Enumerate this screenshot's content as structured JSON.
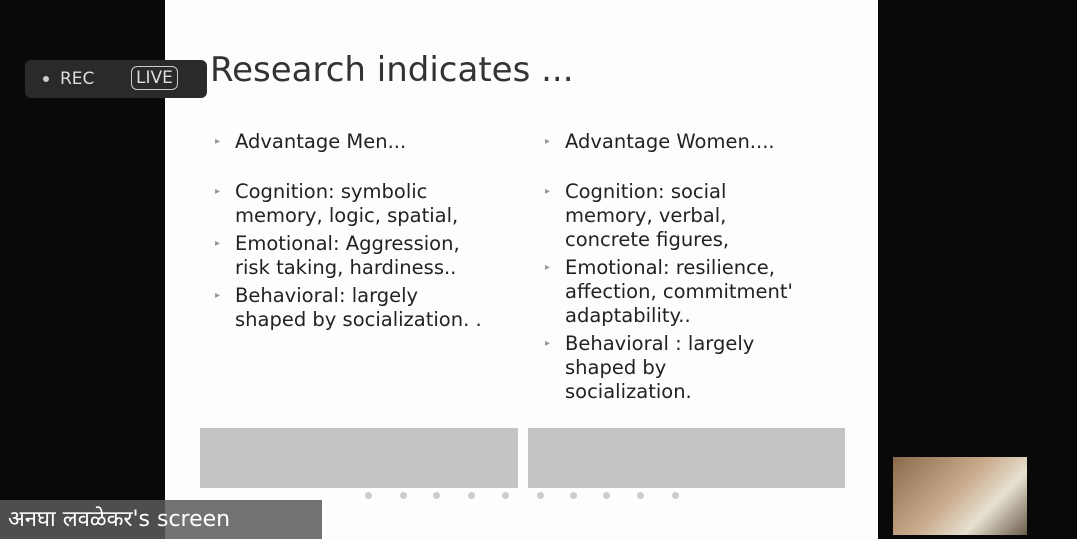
{
  "recording": {
    "rec": "REC",
    "live": "LIVE"
  },
  "slide": {
    "title": "Research indicates ...",
    "columns": [
      {
        "heading": "Advantage Men...",
        "items": [
          "Cognition: symbolic memory, logic, spatial,",
          "Emotional: Aggression, risk taking, hardiness..",
          "Behavioral: largely shaped by socialization. ."
        ]
      },
      {
        "heading": "Advantage Women....",
        "items": [
          "Cognition: social memory, verbal, concrete figures,",
          "Emotional: resilience, affection, commitment' adaptability..",
          "Behavioral : largely shaped by socialization."
        ]
      }
    ]
  },
  "screen_label": "अनघा लवळेकर's screen"
}
